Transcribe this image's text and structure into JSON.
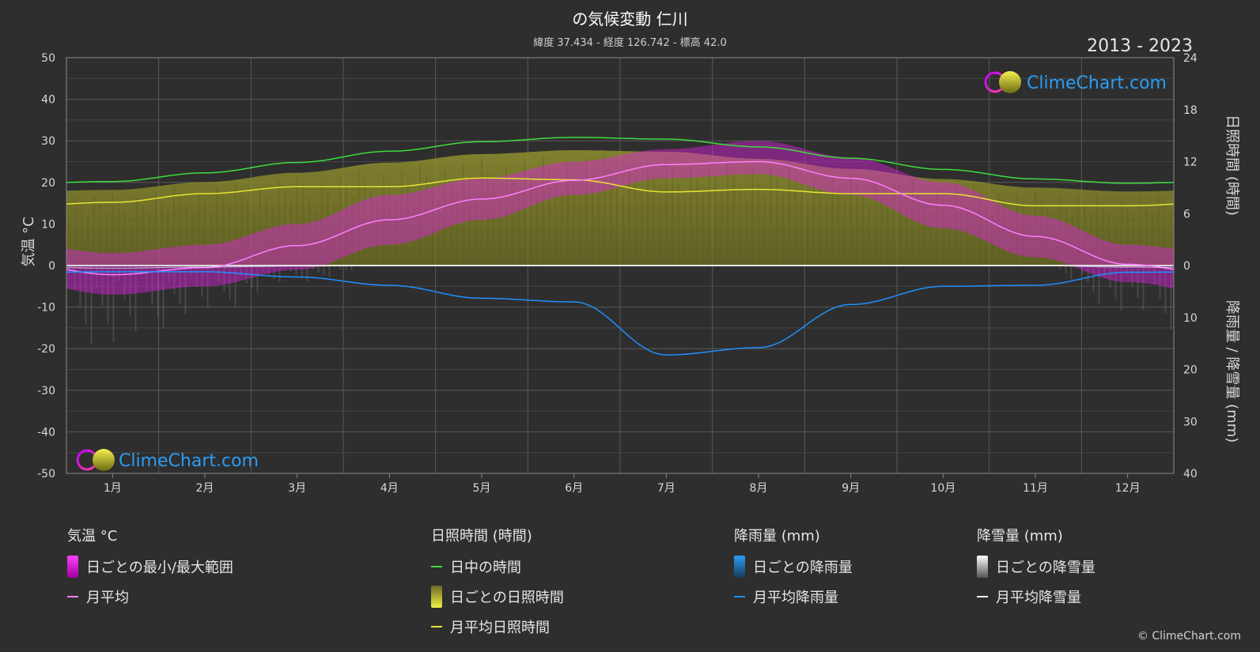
{
  "title": "の気候変動 仁川",
  "subtitle": "緯度 37.434 - 経度 126.742 - 標高 42.0",
  "years": "2013 - 2023",
  "logo_text": "ClimeChart.com",
  "copyright": "© ClimeChart.com",
  "colors": {
    "daylight": "#3ddc3d",
    "sunshine_avg": "#e6e633",
    "temp_avg": "#ff7fff",
    "temp_band": "#e020e0",
    "rain_avg": "#1e90ff",
    "snow_avg": "#ffffff",
    "sunshine_fill": "#8c8c2a",
    "logo_text": "#2a9df4"
  },
  "chart_data": {
    "type": "line",
    "categories": [
      "1月",
      "2月",
      "3月",
      "4月",
      "5月",
      "6月",
      "7月",
      "8月",
      "9月",
      "10月",
      "11月",
      "12月"
    ],
    "left_axis": {
      "label": "気温 °C",
      "ylim": [
        -50,
        50
      ],
      "ticks": [
        "50",
        "40",
        "30",
        "20",
        "10",
        "0",
        "-10",
        "-20",
        "-30",
        "-40",
        "-50"
      ]
    },
    "right_axis_top": {
      "label": "日照時間 (時間)",
      "ylim": [
        0,
        24
      ],
      "ticks": [
        "24",
        "18",
        "12",
        "6",
        "0"
      ]
    },
    "right_axis_bottom": {
      "label": "降雨量 / 降雪量 (mm)",
      "ylim": [
        0,
        40
      ],
      "ticks": [
        "0",
        "10",
        "20",
        "30",
        "40"
      ]
    },
    "grid": true,
    "series": [
      {
        "name": "日中の時間",
        "axis": "sunshine",
        "values": [
          9.7,
          10.7,
          11.9,
          13.2,
          14.3,
          14.8,
          14.6,
          13.7,
          12.4,
          11.1,
          10.0,
          9.5
        ]
      },
      {
        "name": "月平均日照時間",
        "axis": "sunshine",
        "values": [
          7.3,
          8.3,
          9.1,
          9.1,
          10.1,
          9.9,
          8.5,
          8.8,
          8.3,
          8.3,
          6.9,
          6.9
        ]
      },
      {
        "name": "月平均",
        "axis": "temp",
        "values": [
          -2.2,
          -0.5,
          4.8,
          11.0,
          16.0,
          20.5,
          24.3,
          25.0,
          21.0,
          14.5,
          7.0,
          0.3
        ]
      },
      {
        "name": "月平均降雨量",
        "axis": "precip",
        "values": [
          1.2,
          1.2,
          2.2,
          3.8,
          6.3,
          7.0,
          17.2,
          15.8,
          7.5,
          4.0,
          3.8,
          1.3
        ]
      },
      {
        "name": "月平均降雪量",
        "axis": "precip",
        "values": [
          0.5,
          0.3,
          0.1,
          0.0,
          0.0,
          0.0,
          0.0,
          0.0,
          0.0,
          0.0,
          0.0,
          0.3
        ]
      }
    ],
    "temp_range": {
      "min": [
        -7,
        -5,
        -1,
        5,
        11,
        17,
        21,
        22,
        17,
        9,
        2,
        -4
      ],
      "max": [
        3,
        5,
        10,
        17,
        21,
        25,
        28,
        30,
        26,
        20,
        12,
        5
      ]
    }
  },
  "legend": {
    "temp": {
      "heading": "気温 °C",
      "range": "日ごとの最小/最大範囲",
      "avg": "月平均"
    },
    "sun": {
      "heading": "日照時間 (時間)",
      "daylight": "日中の時間",
      "daily": "日ごとの日照時間",
      "avg": "月平均日照時間"
    },
    "rain": {
      "heading": "降雨量 (mm)",
      "daily": "日ごとの降雨量",
      "avg": "月平均降雨量"
    },
    "snow": {
      "heading": "降雪量 (mm)",
      "daily": "日ごとの降雪量",
      "avg": "月平均降雪量"
    }
  }
}
